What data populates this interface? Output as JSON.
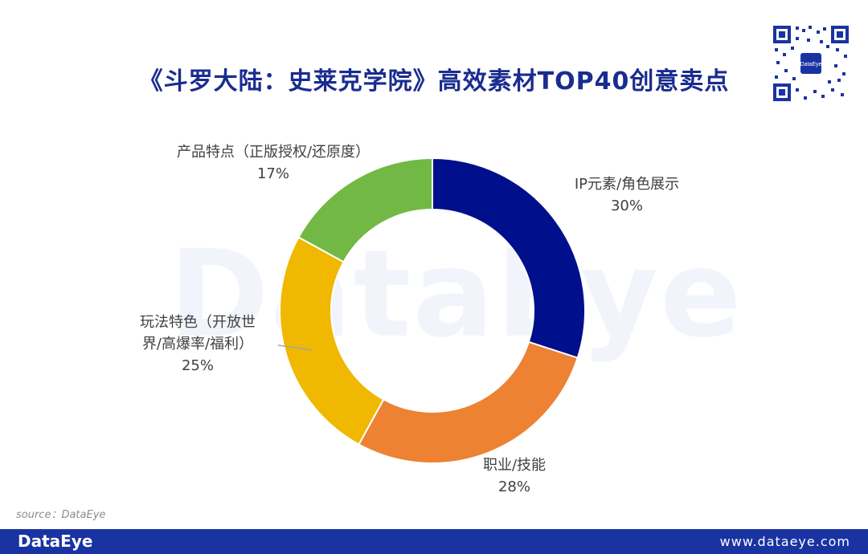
{
  "title": "《斗罗大陆：史莱克学院》高效素材TOP40创意卖点",
  "watermark": "DataEye",
  "source": "source：DataEye",
  "footer": {
    "logo": "DataEye",
    "url": "www.dataeye.com"
  },
  "qr": {
    "center_label": "DataEye"
  },
  "chart_data": {
    "type": "pie",
    "donut": true,
    "slices": [
      {
        "name": "IP元素/角色展示",
        "value": 30,
        "label": "30%",
        "color": "#000f8c"
      },
      {
        "name": "职业/技能",
        "value": 28,
        "label": "28%",
        "color": "#ec8232"
      },
      {
        "name": "玩法特色（开放世界/高爆率/福利）",
        "value": 25,
        "label": "25%",
        "color": "#f0b800"
      },
      {
        "name": "产品特点（正版授权/还原度）",
        "value": 17,
        "label": "17%",
        "color": "#72b844"
      }
    ],
    "label_lines": [
      {
        "name": "IP元素/角色展示"
      },
      {
        "name": "职业/技能"
      },
      {
        "name_lines": [
          "玩法特色（开放世",
          "界/高爆率/福利）"
        ]
      },
      {
        "name": "产品特点（正版授权/还原度）"
      }
    ]
  }
}
